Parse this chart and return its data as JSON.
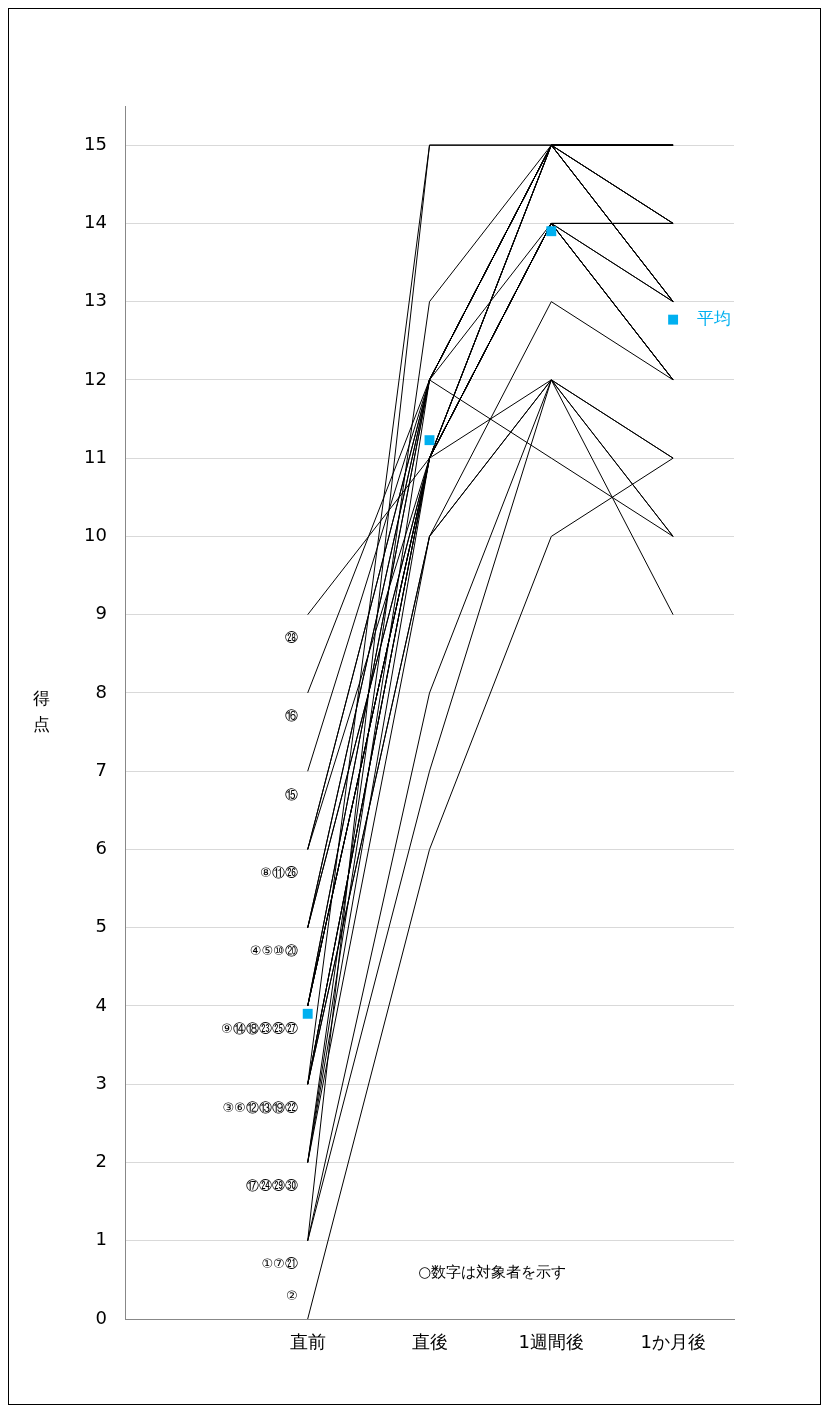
{
  "chart_data": {
    "type": "line",
    "ylabel": "得点",
    "categories": [
      null,
      "直前",
      "直後",
      "1週間後",
      "1か月後"
    ],
    "ylim": [
      0,
      15.5
    ],
    "yticks": [
      0,
      1,
      2,
      3,
      4,
      5,
      6,
      7,
      8,
      9,
      10,
      11,
      12,
      13,
      14,
      15
    ],
    "grid": "y",
    "marker": "none",
    "line_style": "solid",
    "series": [
      {
        "color": "#000000",
        "values": [
          null,
          1,
          7,
          12,
          11
        ]
      },
      {
        "color": "#000000",
        "values": [
          null,
          0,
          6,
          10,
          11
        ]
      },
      {
        "color": "#000000",
        "values": [
          null,
          3,
          15,
          15,
          15
        ]
      },
      {
        "color": "#000000",
        "values": [
          null,
          5,
          12,
          15,
          15
        ]
      },
      {
        "color": "#000000",
        "values": [
          null,
          5,
          11,
          15,
          14
        ]
      },
      {
        "color": "#000000",
        "values": [
          null,
          3,
          11,
          14,
          13
        ]
      },
      {
        "color": "#000000",
        "values": [
          null,
          1,
          15,
          15,
          15
        ]
      },
      {
        "color": "#000000",
        "values": [
          null,
          6,
          12,
          15,
          13
        ]
      },
      {
        "color": "#000000",
        "values": [
          null,
          4,
          11,
          14,
          14
        ]
      },
      {
        "color": "#000000",
        "values": [
          null,
          5,
          12,
          15,
          15
        ]
      },
      {
        "color": "#000000",
        "values": [
          null,
          6,
          11,
          14,
          12
        ]
      },
      {
        "color": "#000000",
        "values": [
          null,
          3,
          10,
          12,
          10
        ]
      },
      {
        "color": "#000000",
        "values": [
          null,
          3,
          11,
          14,
          13
        ]
      },
      {
        "color": "#000000",
        "values": [
          null,
          4,
          11,
          15,
          13
        ]
      },
      {
        "color": "#000000",
        "values": [
          null,
          7,
          12,
          15,
          15
        ]
      },
      {
        "color": "#000000",
        "values": [
          null,
          8,
          12,
          11,
          10
        ]
      },
      {
        "color": "#000000",
        "values": [
          null,
          2,
          11,
          14,
          12
        ]
      },
      {
        "color": "#000000",
        "values": [
          null,
          4,
          12,
          15,
          14
        ]
      },
      {
        "color": "#000000",
        "values": [
          null,
          3,
          10,
          12,
          9
        ]
      },
      {
        "color": "#000000",
        "values": [
          null,
          5,
          11,
          14,
          12
        ]
      },
      {
        "color": "#000000",
        "values": [
          null,
          1,
          8,
          12,
          11
        ]
      },
      {
        "color": "#000000",
        "values": [
          null,
          3,
          11,
          15,
          13
        ]
      },
      {
        "color": "#000000",
        "values": [
          null,
          4,
          12,
          14,
          14
        ]
      },
      {
        "color": "#000000",
        "values": [
          null,
          2,
          10,
          13,
          12
        ]
      },
      {
        "color": "#000000",
        "values": [
          null,
          4,
          11,
          15,
          15
        ]
      },
      {
        "color": "#000000",
        "values": [
          null,
          6,
          12,
          15,
          13
        ]
      },
      {
        "color": "#000000",
        "values": [
          null,
          4,
          11,
          14,
          12
        ]
      },
      {
        "color": "#000000",
        "values": [
          null,
          9,
          11,
          12,
          10
        ]
      },
      {
        "color": "#000000",
        "values": [
          null,
          2,
          13,
          15,
          14
        ]
      },
      {
        "color": "#000000",
        "values": [
          null,
          2,
          12,
          15,
          15
        ]
      },
      {
        "name": "平均",
        "type": "scatter",
        "marker": "square",
        "color": "#00b0f0",
        "values": [
          null,
          3.9,
          11.23,
          13.9,
          12.77
        ]
      }
    ],
    "annotations": [
      {
        "text": "㉘",
        "x": "直前",
        "y": 9
      },
      {
        "text": "⑯",
        "x": "直前",
        "y": 8
      },
      {
        "text": "⑮",
        "x": "直前",
        "y": 7
      },
      {
        "text": "⑧⑪㉖",
        "x": "直前",
        "y": 6
      },
      {
        "text": "④⑤⑩⑳",
        "x": "直前",
        "y": 5
      },
      {
        "text": "⑨⑭⑱㉓㉕㉗",
        "x": "直前",
        "y": 4
      },
      {
        "text": "③⑥⑫⑬⑲㉒",
        "x": "直前",
        "y": 3
      },
      {
        "text": "⑰㉔㉙㉚",
        "x": "直前",
        "y": 2
      },
      {
        "text": "①⑦㉑",
        "x": "直前",
        "y": 1
      },
      {
        "text": "②",
        "x": "直前",
        "y": 0
      },
      "○数字は対象者を示す"
    ]
  }
}
